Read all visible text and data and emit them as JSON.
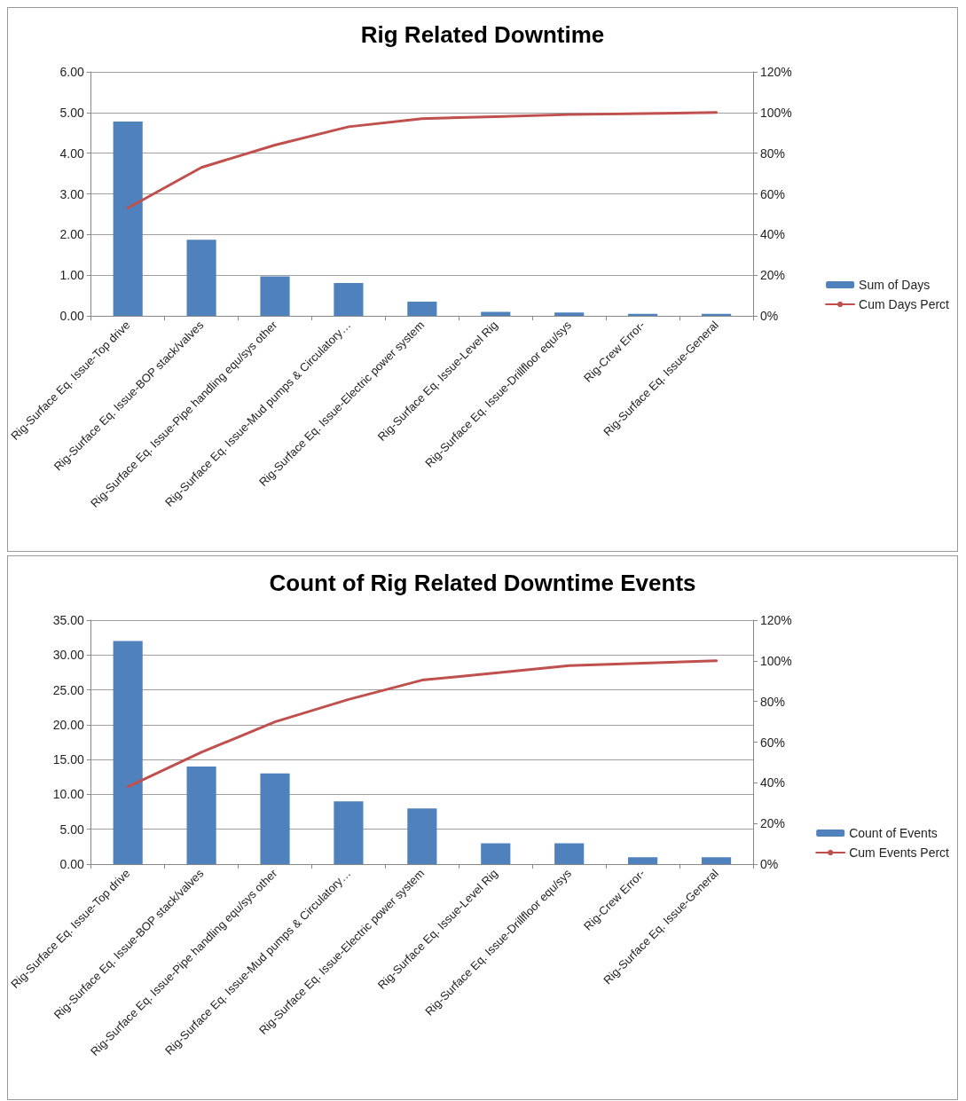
{
  "chart_data": [
    {
      "type": "bar",
      "title": "Rig Related Downtime",
      "categories": [
        "Rig-Surface Eq. Issue-Top drive",
        "Rig-Surface Eq. Issue-BOP stack/valves",
        "Rig-Surface Eq. Issue-Pipe handling equ/sys other",
        "Rig-Surface Eq. Issue-Mud pumps & Circulatory…",
        "Rig-Surface Eq. Issue-Electric power system",
        "Rig-Surface Eq. Issue-Level Rig",
        "Rig-Surface Eq. Issue-Drillfloor equ/sys",
        "Rig-Crew Error-",
        "Rig-Surface Eq. Issue-General"
      ],
      "series": [
        {
          "name": "Sum of Days",
          "color": "#4f81bd",
          "values": [
            4.78,
            1.87,
            0.97,
            0.81,
            0.35,
            0.1,
            0.08,
            0.05,
            0.05
          ]
        },
        {
          "name": "Cum Days Perct",
          "type": "line",
          "axis": "y2",
          "color": "#c0504d",
          "values": [
            53,
            73,
            84,
            93,
            97,
            98,
            99,
            99.5,
            100
          ]
        }
      ],
      "ylim": [
        0,
        6
      ],
      "yticks": [
        {
          "value": 0,
          "label": "0.00"
        },
        {
          "value": 1,
          "label": "1.00"
        },
        {
          "value": 2,
          "label": "2.00"
        },
        {
          "value": 3,
          "label": "3.00"
        },
        {
          "value": 4,
          "label": "4.00"
        },
        {
          "value": 5,
          "label": "5.00"
        },
        {
          "value": 6,
          "label": "6.00"
        }
      ],
      "y2lim": [
        0,
        120
      ],
      "y2ticks": [
        {
          "value": 0,
          "label": "0%"
        },
        {
          "value": 20,
          "label": "20%"
        },
        {
          "value": 40,
          "label": "40%"
        },
        {
          "value": 60,
          "label": "60%"
        },
        {
          "value": 80,
          "label": "80%"
        },
        {
          "value": 100,
          "label": "100%"
        },
        {
          "value": 120,
          "label": "120%"
        }
      ],
      "grid": "y",
      "legend": "right",
      "marker": "none"
    },
    {
      "type": "bar",
      "title": "Count of Rig Related Downtime Events",
      "categories": [
        "Rig-Surface Eq. Issue-Top drive",
        "Rig-Surface Eq. Issue-BOP stack/valves",
        "Rig-Surface Eq. Issue-Pipe handling equ/sys other",
        "Rig-Surface Eq. Issue-Mud pumps & Circulatory…",
        "Rig-Surface Eq. Issue-Electric power system",
        "Rig-Surface Eq. Issue-Level Rig",
        "Rig-Surface Eq. Issue-Drillfloor equ/sys",
        "Rig-Crew Error-",
        "Rig-Surface Eq. Issue-General"
      ],
      "series": [
        {
          "name": "Count of Events",
          "color": "#4f81bd",
          "values": [
            32,
            14,
            13,
            9,
            8,
            3,
            3,
            1,
            1
          ]
        },
        {
          "name": "Cum Events Perct",
          "type": "line",
          "axis": "y2",
          "color": "#c0504d",
          "values": [
            38,
            55,
            70,
            81,
            90.5,
            94,
            97.6,
            98.8,
            100
          ]
        }
      ],
      "ylim": [
        0,
        35
      ],
      "yticks": [
        {
          "value": 0,
          "label": "0.00"
        },
        {
          "value": 5,
          "label": "5.00"
        },
        {
          "value": 10,
          "label": "10.00"
        },
        {
          "value": 15,
          "label": "15.00"
        },
        {
          "value": 20,
          "label": "20.00"
        },
        {
          "value": 25,
          "label": "25.00"
        },
        {
          "value": 30,
          "label": "30.00"
        },
        {
          "value": 35,
          "label": "35.00"
        }
      ],
      "y2lim": [
        0,
        120
      ],
      "y2ticks": [
        {
          "value": 0,
          "label": "0%"
        },
        {
          "value": 20,
          "label": "20%"
        },
        {
          "value": 40,
          "label": "40%"
        },
        {
          "value": 60,
          "label": "60%"
        },
        {
          "value": 80,
          "label": "80%"
        },
        {
          "value": 100,
          "label": "100%"
        },
        {
          "value": 120,
          "label": "120%"
        }
      ],
      "grid": "y",
      "legend": "right",
      "marker": "none"
    }
  ]
}
